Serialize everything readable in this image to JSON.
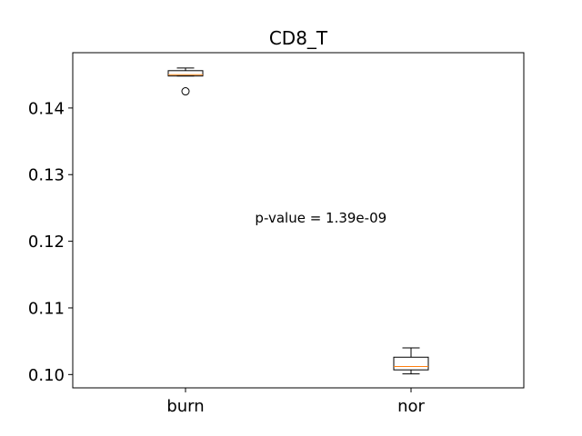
{
  "chart_data": {
    "type": "box",
    "title": "CD8_T",
    "xlabel": "",
    "ylabel": "",
    "categories": [
      "burn",
      "nor"
    ],
    "ylim": [
      0.098,
      0.1483
    ],
    "yticks": [
      0.1,
      0.11,
      0.12,
      0.13,
      0.14
    ],
    "ytick_labels": [
      "0.10",
      "0.11",
      "0.12",
      "0.13",
      "0.14"
    ],
    "boxes": [
      {
        "label": "burn",
        "whislo": 0.1448,
        "q1": 0.1448,
        "med": 0.145,
        "q3": 0.1456,
        "whishi": 0.146,
        "fliers": [
          0.1425
        ]
      },
      {
        "label": "nor",
        "whislo": 0.1001,
        "q1": 0.1007,
        "med": 0.1012,
        "q3": 0.1026,
        "whishi": 0.104,
        "fliers": []
      }
    ],
    "annotation": {
      "text": "p-value = 1.39e-09",
      "x": 1.6,
      "y": 0.1235
    },
    "grid": false,
    "colors": {
      "box": "#000000",
      "median": "#ff7f0e",
      "flier": "#000000"
    }
  }
}
